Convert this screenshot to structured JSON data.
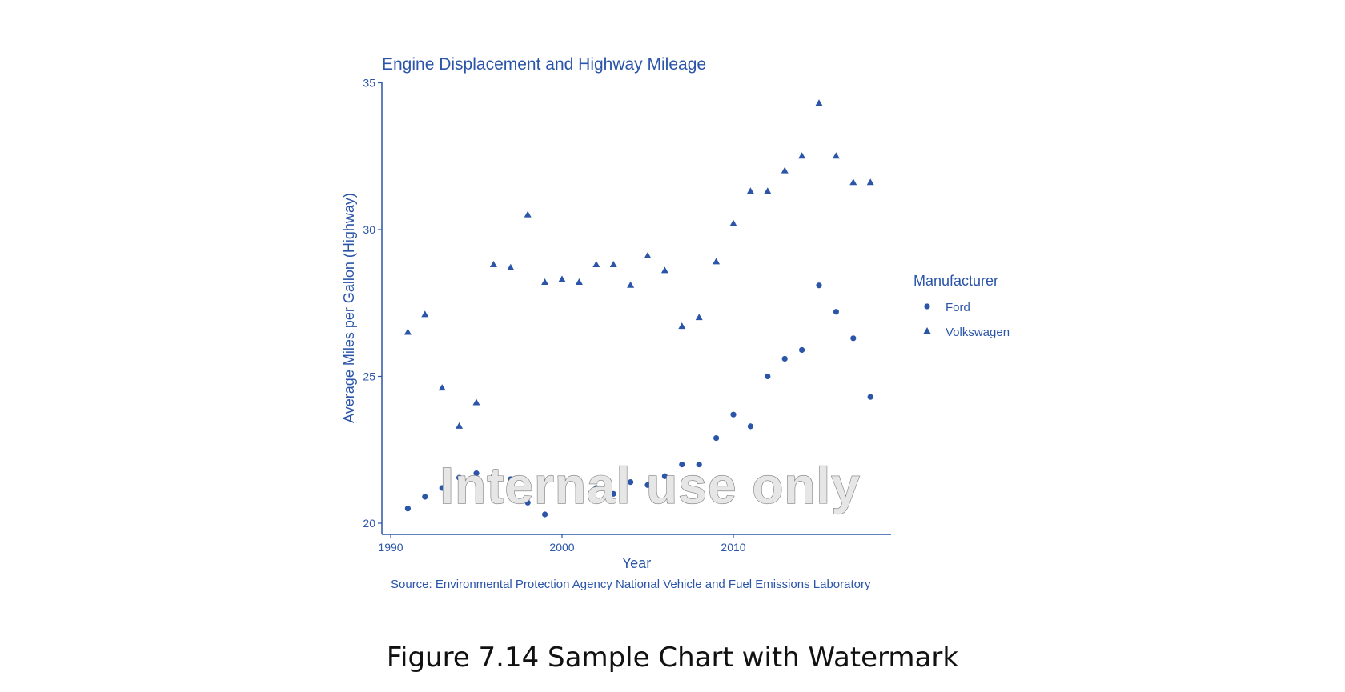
{
  "figure_caption": "Figure 7.14 Sample Chart with Watermark",
  "watermark_text": "Internal use only",
  "chart_data": {
    "type": "scatter",
    "title": "Engine Displacement and Highway Mileage",
    "xlabel": "Year",
    "ylabel": "Average Miles per Gallon (Highway)",
    "source": "Source: Environmental Protection Agency National Vehicle and Fuel Emissions Laboratory",
    "xlim": [
      1990,
      2019
    ],
    "ylim": [
      20,
      35
    ],
    "xticks": [
      1990,
      2000,
      2010
    ],
    "yticks": [
      20,
      25,
      30,
      35
    ],
    "grid": false,
    "legend": {
      "title": "Manufacturer",
      "position": "right"
    },
    "color": "#2b55a8",
    "series": [
      {
        "name": "Ford",
        "marker": "circle",
        "x": [
          1991,
          1992,
          1993,
          1994,
          1995,
          1996,
          1997,
          1998,
          1999,
          2000,
          2001,
          2002,
          2003,
          2004,
          2005,
          2006,
          2007,
          2008,
          2009,
          2010,
          2011,
          2012,
          2013,
          2014,
          2015,
          2016,
          2017,
          2018
        ],
        "y": [
          20.5,
          20.9,
          21.2,
          21.55,
          21.7,
          21.6,
          21.5,
          20.7,
          20.3,
          21.3,
          20.9,
          21.2,
          21.0,
          21.4,
          21.3,
          21.6,
          22.0,
          22.0,
          22.9,
          23.7,
          23.3,
          25.0,
          25.6,
          25.9,
          28.1,
          27.2,
          26.3,
          24.3
        ]
      },
      {
        "name": "Volkswagen",
        "marker": "triangle",
        "x": [
          1991,
          1992,
          1993,
          1994,
          1995,
          1996,
          1997,
          1998,
          1999,
          2000,
          2001,
          2002,
          2003,
          2004,
          2005,
          2006,
          2007,
          2008,
          2009,
          2010,
          2011,
          2012,
          2013,
          2014,
          2015,
          2016,
          2017,
          2018
        ],
        "y": [
          26.5,
          27.1,
          24.6,
          23.3,
          24.1,
          28.8,
          28.7,
          30.5,
          28.2,
          28.3,
          28.2,
          28.8,
          28.8,
          28.1,
          29.1,
          28.6,
          26.7,
          27.0,
          28.9,
          30.2,
          31.3,
          31.3,
          32.0,
          32.5,
          34.3,
          32.5,
          31.6,
          31.6
        ]
      }
    ]
  }
}
